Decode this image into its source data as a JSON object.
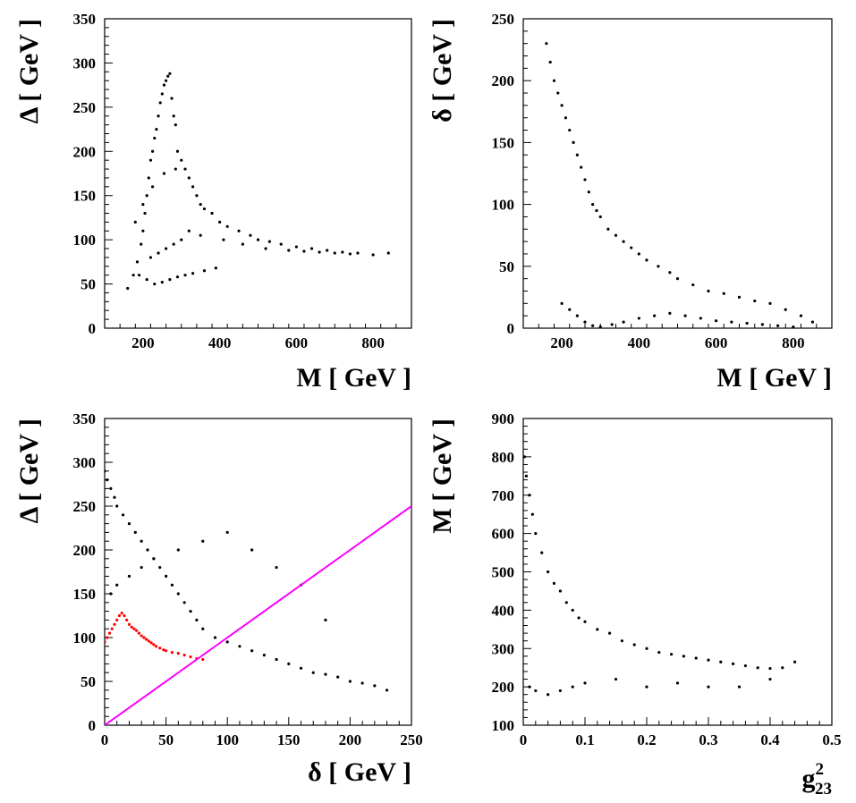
{
  "chart_data": [
    {
      "id": "top-left",
      "type": "scatter",
      "xlabel": "M [ GeV ]",
      "ylabel": "Δ [ GeV ]",
      "xlim": [
        100,
        900
      ],
      "ylim": [
        0,
        350
      ],
      "xticks": [
        200,
        400,
        600,
        800
      ],
      "yticks": [
        0,
        50,
        100,
        150,
        200,
        250,
        300,
        350
      ],
      "xtick_labels": [
        "200",
        "400",
        "600",
        "800"
      ],
      "ytick_labels": [
        "0",
        "50",
        "100",
        "150",
        "200",
        "250",
        "300",
        "350"
      ],
      "color": "#000000",
      "x": [
        160,
        175,
        185,
        195,
        200,
        205,
        210,
        215,
        220,
        225,
        230,
        235,
        240,
        245,
        250,
        255,
        260,
        265,
        270,
        275,
        280,
        285,
        290,
        300,
        310,
        320,
        330,
        340,
        350,
        360,
        380,
        400,
        420,
        450,
        480,
        500,
        530,
        560,
        600,
        640,
        680,
        720,
        760,
        800,
        840,
        190,
        210,
        230,
        250,
        270,
        290,
        310,
        330,
        360,
        390,
        220,
        240,
        260,
        280,
        300,
        180,
        200,
        225,
        255,
        285,
        320,
        350,
        410,
        460,
        520,
        580,
        620,
        660,
        700,
        740
      ],
      "y": [
        45,
        60,
        75,
        95,
        110,
        130,
        150,
        170,
        190,
        200,
        215,
        225,
        240,
        255,
        265,
        275,
        280,
        285,
        288,
        260,
        240,
        230,
        200,
        190,
        180,
        170,
        160,
        150,
        140,
        135,
        130,
        120,
        115,
        110,
        105,
        100,
        98,
        95,
        92,
        90,
        88,
        86,
        85,
        83,
        85,
        60,
        55,
        50,
        52,
        55,
        58,
        60,
        62,
        65,
        68,
        80,
        85,
        90,
        95,
        100,
        120,
        140,
        160,
        175,
        180,
        110,
        105,
        100,
        95,
        90,
        88,
        87,
        86,
        85,
        84
      ]
    },
    {
      "id": "top-right",
      "type": "scatter",
      "xlabel": "M [ GeV ]",
      "ylabel": "δ [ GeV ]",
      "xlim": [
        100,
        900
      ],
      "ylim": [
        0,
        250
      ],
      "xticks": [
        200,
        400,
        600,
        800
      ],
      "yticks": [
        0,
        50,
        100,
        150,
        200,
        250
      ],
      "xtick_labels": [
        "200",
        "400",
        "600",
        "800"
      ],
      "ytick_labels": [
        "0",
        "50",
        "100",
        "150",
        "200",
        "250"
      ],
      "color": "#000000",
      "x": [
        160,
        170,
        180,
        190,
        200,
        210,
        220,
        230,
        240,
        250,
        260,
        270,
        280,
        290,
        300,
        320,
        340,
        360,
        380,
        400,
        420,
        450,
        480,
        500,
        540,
        580,
        620,
        660,
        700,
        740,
        780,
        820,
        850,
        200,
        220,
        240,
        260,
        280,
        300,
        330,
        360,
        400,
        440,
        480,
        520,
        560,
        600,
        640,
        680,
        720,
        760,
        800
      ],
      "y": [
        230,
        215,
        200,
        190,
        180,
        170,
        160,
        150,
        140,
        130,
        120,
        110,
        100,
        95,
        90,
        80,
        75,
        70,
        65,
        60,
        55,
        50,
        45,
        40,
        35,
        30,
        28,
        25,
        22,
        20,
        15,
        10,
        5,
        20,
        15,
        10,
        5,
        2,
        1,
        3,
        5,
        8,
        10,
        12,
        10,
        8,
        6,
        5,
        4,
        3,
        2,
        1
      ]
    },
    {
      "id": "bottom-left",
      "type": "scatter",
      "xlabel": "δ [ GeV ]",
      "ylabel": "Δ [ GeV ]",
      "xlim": [
        0,
        250
      ],
      "ylim": [
        0,
        350
      ],
      "xticks": [
        0,
        50,
        100,
        150,
        200,
        250
      ],
      "yticks": [
        0,
        50,
        100,
        150,
        200,
        250,
        300,
        350
      ],
      "xtick_labels": [
        "0",
        "50",
        "100",
        "150",
        "200",
        "250"
      ],
      "ytick_labels": [
        "0",
        "50",
        "100",
        "150",
        "200",
        "250",
        "300",
        "350"
      ],
      "series": [
        {
          "color": "#000000",
          "x": [
            0,
            2,
            5,
            8,
            10,
            15,
            20,
            25,
            30,
            35,
            40,
            45,
            50,
            55,
            60,
            65,
            70,
            75,
            80,
            90,
            100,
            110,
            120,
            130,
            140,
            150,
            160,
            170,
            180,
            190,
            200,
            210,
            220,
            230,
            5,
            10,
            20,
            30,
            40,
            60,
            80,
            100,
            120,
            140,
            160,
            180
          ],
          "y": [
            290,
            280,
            270,
            260,
            250,
            240,
            230,
            220,
            210,
            200,
            190,
            180,
            170,
            160,
            150,
            140,
            130,
            120,
            110,
            100,
            95,
            90,
            85,
            80,
            75,
            70,
            65,
            60,
            58,
            55,
            50,
            48,
            45,
            40,
            150,
            160,
            170,
            180,
            190,
            200,
            210,
            220,
            200,
            180,
            160,
            120
          ]
        },
        {
          "color": "#ff0000",
          "x": [
            0,
            2,
            4,
            6,
            8,
            10,
            12,
            14,
            16,
            18,
            20,
            22,
            24,
            26,
            28,
            30,
            32,
            34,
            36,
            38,
            40,
            42,
            45,
            48,
            50,
            55,
            60,
            65,
            70,
            75,
            80
          ],
          "y": [
            95,
            100,
            105,
            110,
            115,
            120,
            125,
            128,
            125,
            120,
            115,
            112,
            110,
            108,
            105,
            102,
            100,
            98,
            96,
            94,
            92,
            90,
            88,
            86,
            85,
            83,
            82,
            80,
            78,
            76,
            75
          ]
        }
      ],
      "line": {
        "x": [
          0,
          250
        ],
        "y": [
          0,
          250
        ],
        "color": "#ff00ff"
      }
    },
    {
      "id": "bottom-right",
      "type": "scatter",
      "xlabel": "g",
      "xlabel_sup": "2",
      "xlabel_sub": "23",
      "ylabel": "M [ GeV ]",
      "xlim": [
        0,
        0.5
      ],
      "ylim": [
        100,
        900
      ],
      "xticks": [
        0,
        0.1,
        0.2,
        0.3,
        0.4,
        0.5
      ],
      "yticks": [
        100,
        200,
        300,
        400,
        500,
        600,
        700,
        800,
        900
      ],
      "xtick_labels": [
        "0",
        "0.1",
        "0.2",
        "0.3",
        "0.4",
        "0.5"
      ],
      "ytick_labels": [
        "100",
        "200",
        "300",
        "400",
        "500",
        "600",
        "700",
        "800",
        "900"
      ],
      "color": "#000000",
      "x": [
        0.002,
        0.005,
        0.01,
        0.015,
        0.02,
        0.03,
        0.04,
        0.05,
        0.06,
        0.07,
        0.08,
        0.09,
        0.1,
        0.12,
        0.14,
        0.16,
        0.18,
        0.2,
        0.22,
        0.24,
        0.26,
        0.28,
        0.3,
        0.32,
        0.34,
        0.36,
        0.38,
        0.4,
        0.42,
        0.44,
        0.01,
        0.02,
        0.04,
        0.06,
        0.08,
        0.1,
        0.15,
        0.2,
        0.25,
        0.3,
        0.35,
        0.4
      ],
      "y": [
        800,
        750,
        700,
        650,
        600,
        550,
        500,
        470,
        450,
        420,
        400,
        380,
        370,
        350,
        340,
        320,
        310,
        300,
        290,
        285,
        280,
        275,
        270,
        265,
        260,
        255,
        250,
        248,
        250,
        265,
        200,
        190,
        180,
        190,
        200,
        210,
        220,
        200,
        210,
        200,
        200,
        220
      ]
    }
  ]
}
